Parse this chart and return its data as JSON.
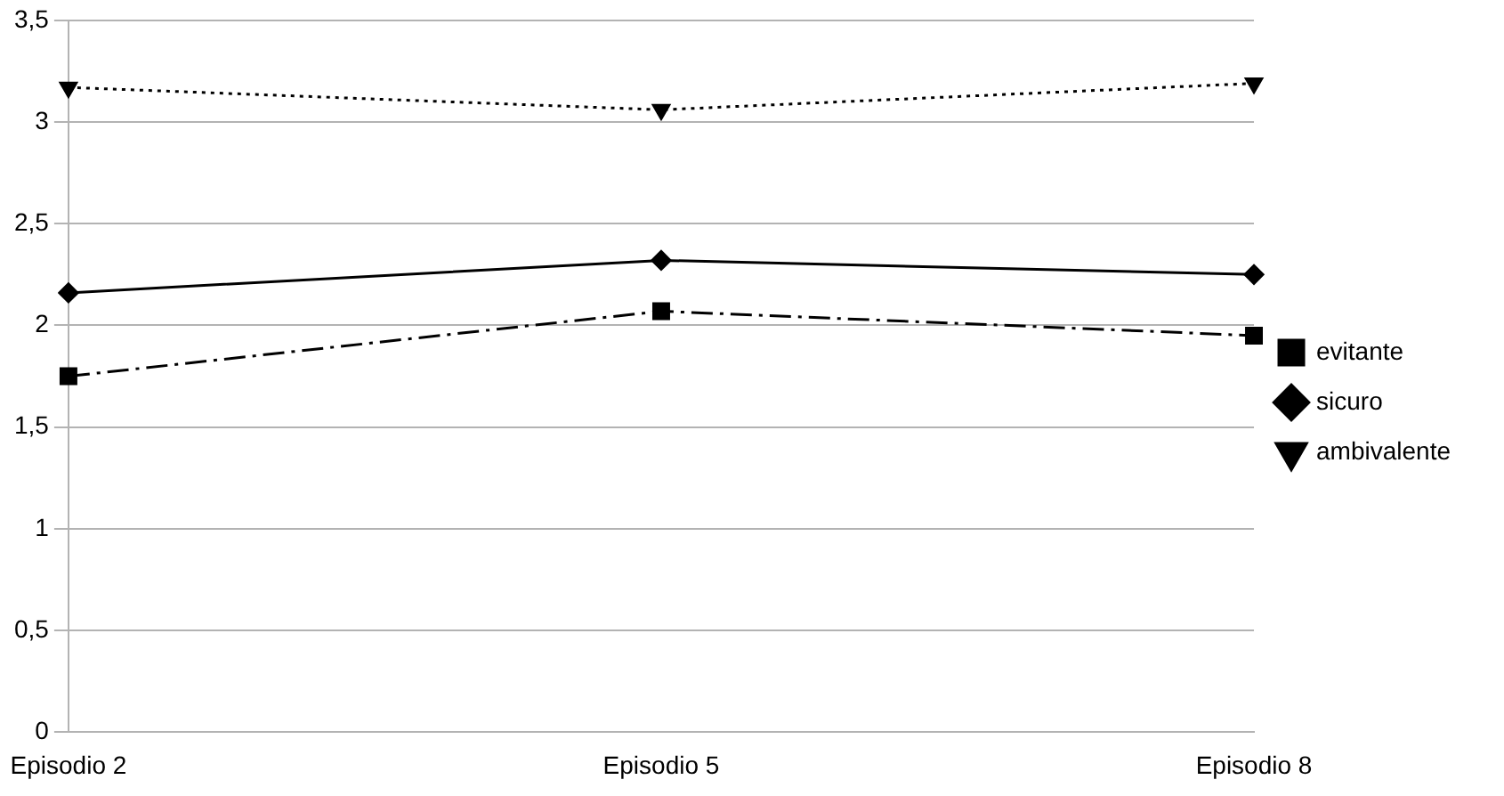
{
  "chart_data": {
    "type": "line",
    "categories": [
      "Episodio 2",
      "Episodio 5",
      "Episodio 8"
    ],
    "series": [
      {
        "name": "evitante",
        "color": "#000000",
        "values": [
          1.75,
          2.07,
          1.95
        ],
        "marker": "square",
        "line_style": "dashed"
      },
      {
        "name": "sicuro",
        "color": "#000000",
        "values": [
          2.16,
          2.32,
          2.25
        ],
        "marker": "diamond",
        "line_style": "solid"
      },
      {
        "name": "ambivalente",
        "color": "#000000",
        "values": [
          3.17,
          3.06,
          3.19
        ],
        "marker": "triangle",
        "line_style": "dotted"
      }
    ],
    "ylim": [
      0,
      3.5
    ],
    "yticks": [
      {
        "value": 0,
        "label": "0"
      },
      {
        "value": 0.5,
        "label": "0,5"
      },
      {
        "value": 1,
        "label": "1"
      },
      {
        "value": 1.5,
        "label": "1,5"
      },
      {
        "value": 2,
        "label": "2"
      },
      {
        "value": 2.5,
        "label": "2,5"
      },
      {
        "value": 3,
        "label": "3"
      },
      {
        "value": 3.5,
        "label": "3,5"
      }
    ],
    "grid": "y",
    "legend": "right"
  }
}
